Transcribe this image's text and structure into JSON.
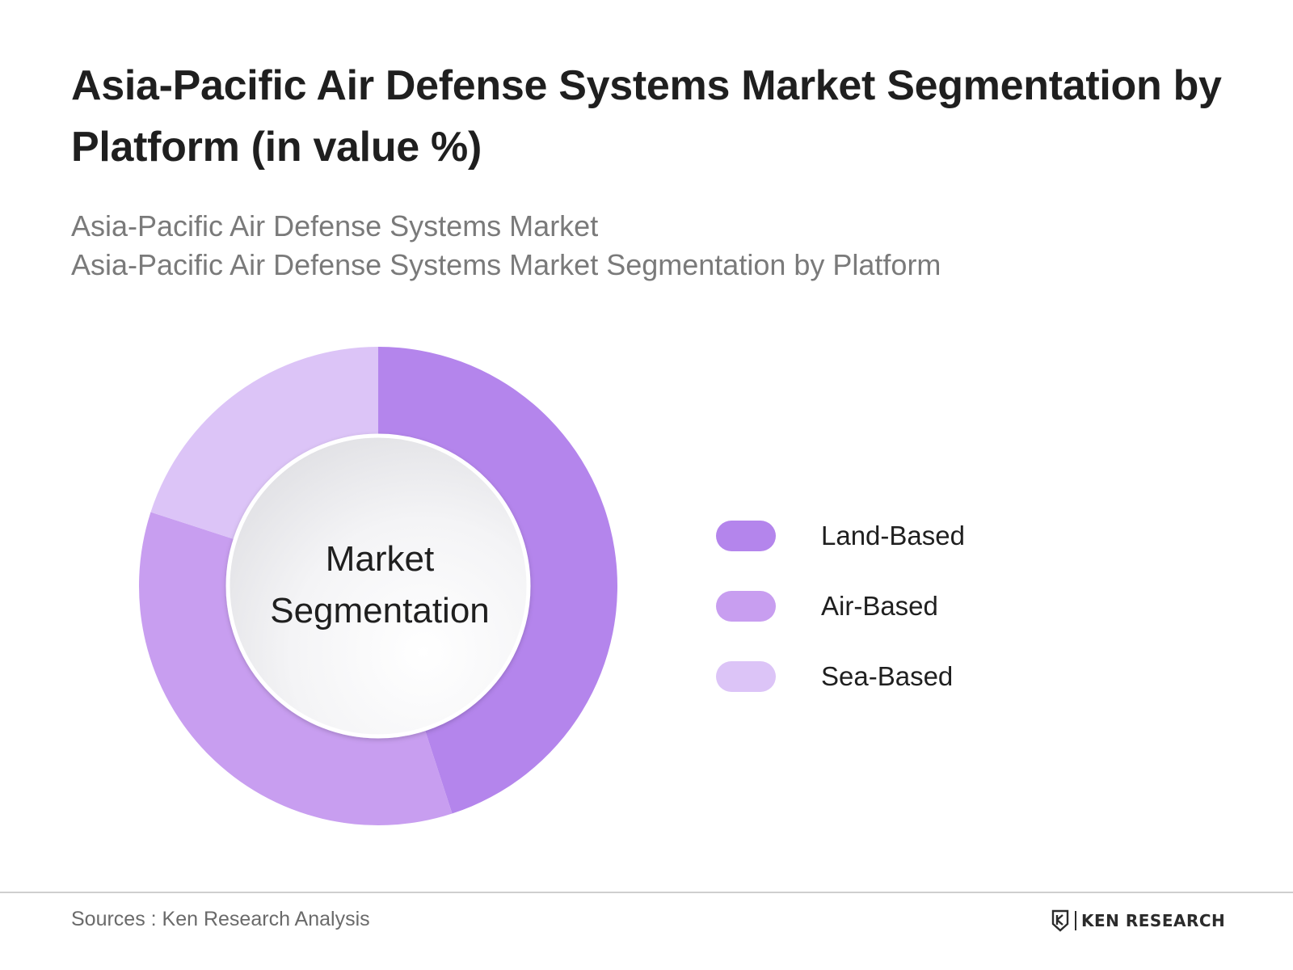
{
  "title": "Asia-Pacific Air Defense Systems Market Segmentation by Platform (in value %)",
  "subtitle_lines": [
    "Asia-Pacific Air Defense Systems Market",
    "Asia-Pacific Air Defense Systems Market Segmentation by Platform"
  ],
  "center_label_lines": [
    "Market",
    "Segmentation"
  ],
  "sources": "Sources : Ken Research Analysis",
  "brand": {
    "name": "KEN RESEARCH",
    "logo_icon": "ken-research-logo-icon"
  },
  "chart_data": {
    "type": "pie",
    "variant": "donut",
    "title": "Asia-Pacific Air Defense Systems Market Segmentation by Platform (in value %)",
    "categories": [
      "Land-Based",
      "Air-Based",
      "Sea-Based"
    ],
    "values": [
      45,
      35,
      20
    ],
    "colors": [
      "#b485ec",
      "#c89ef0",
      "#dcc4f7"
    ],
    "start_angle_deg": 0,
    "direction": "clockwise",
    "legend_position": "right"
  }
}
